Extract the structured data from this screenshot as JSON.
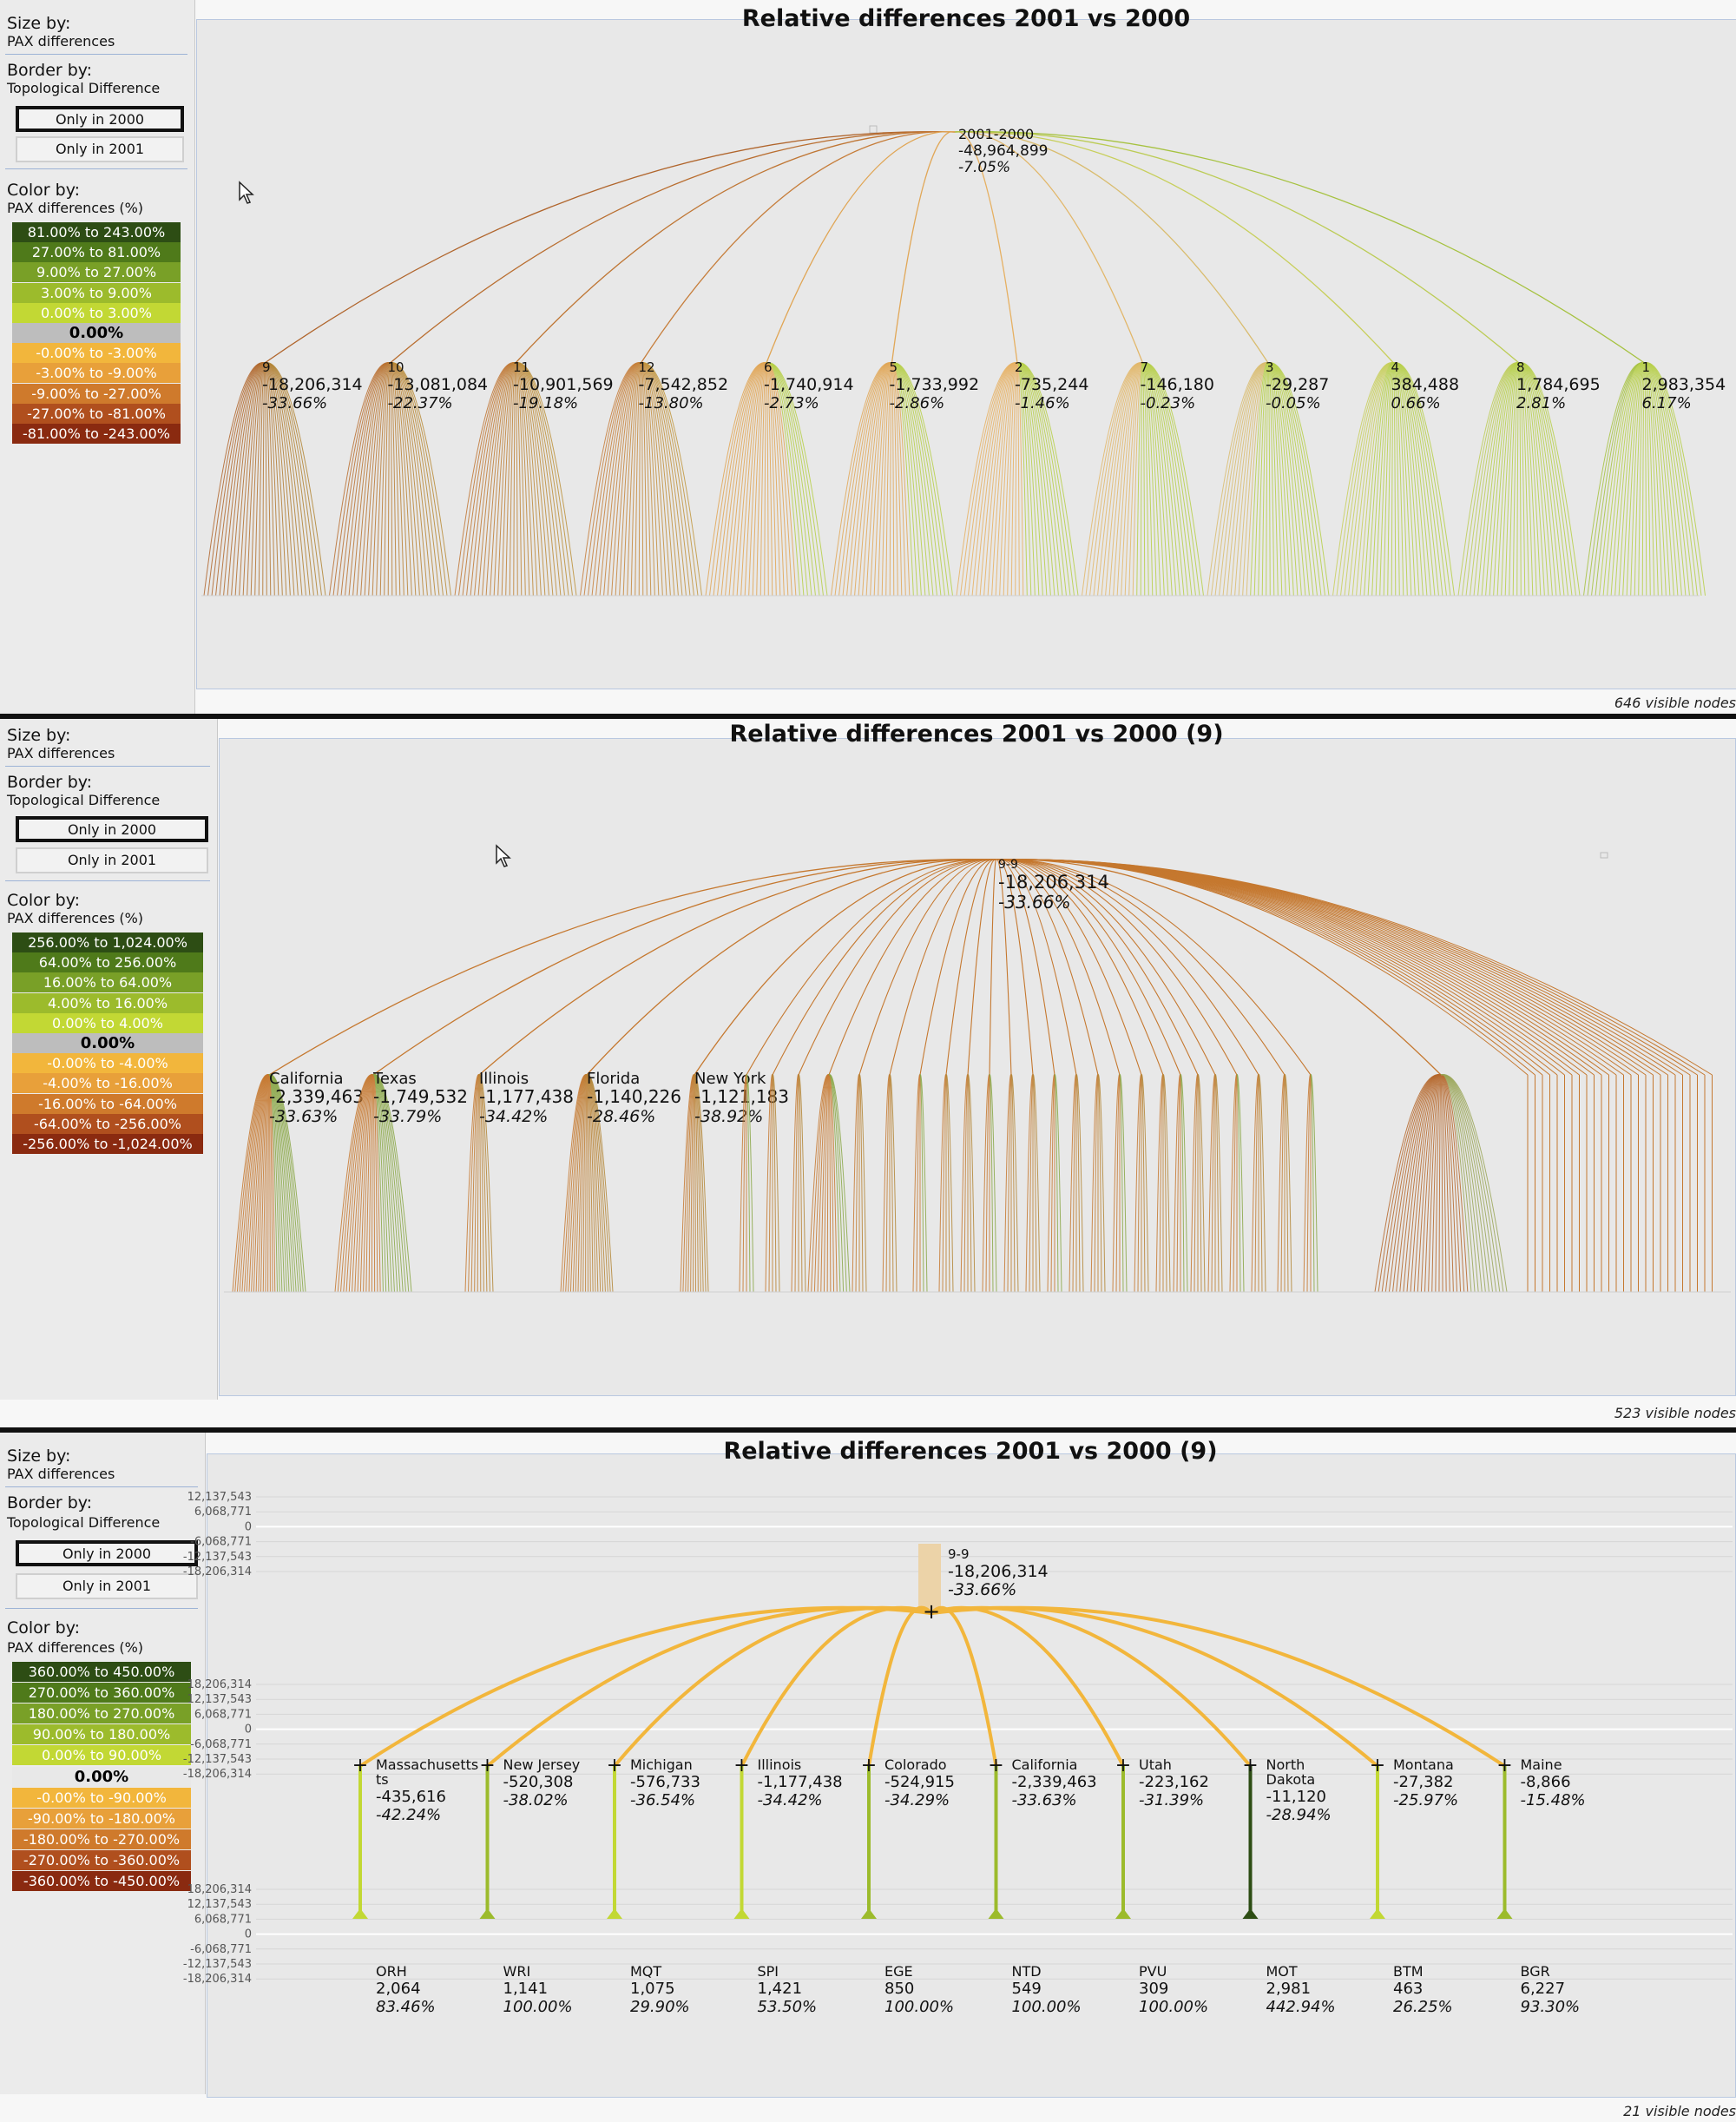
{
  "panels": [
    {
      "size_by": "Size by:",
      "size_by_value": "PAX differences",
      "border_by": "Border by:",
      "border_by_value": "Topological Difference",
      "btn_only_2000": "Only in 2000",
      "btn_only_2001": "Only in 2001",
      "color_by": "Color by:",
      "color_by_value": "PAX differences (%)",
      "legend": [
        {
          "label": "81.00% to 243.00%",
          "bg": "#2d4d14",
          "fg": "#fff"
        },
        {
          "label": "27.00% to 81.00%",
          "bg": "#4f7a1a",
          "fg": "#fff"
        },
        {
          "label": "9.00% to 27.00%",
          "bg": "#79a027",
          "fg": "#fff"
        },
        {
          "label": "3.00% to 9.00%",
          "bg": "#9cbb2c",
          "fg": "#fff"
        },
        {
          "label": "0.00% to 3.00%",
          "bg": "#c2d834",
          "fg": "#fff"
        },
        {
          "label": "0.00%",
          "bg": "#bdbdbd",
          "fg": "#000"
        },
        {
          "label": "-0.00% to -3.00%",
          "bg": "#f2b63c",
          "fg": "#fff"
        },
        {
          "label": "-3.00% to -9.00%",
          "bg": "#e8a03a",
          "fg": "#fff"
        },
        {
          "label": "-9.00% to -27.00%",
          "bg": "#cf7a2c",
          "fg": "#fff"
        },
        {
          "label": "-27.00% to -81.00%",
          "bg": "#b04f1e",
          "fg": "#fff"
        },
        {
          "label": "-81.00% to -243.00%",
          "bg": "#8a2a10",
          "fg": "#fff"
        }
      ],
      "title": "Relative differences 2001 vs 2000",
      "footer": "646 visible nodes",
      "root": {
        "id": "2001-2000",
        "value": "-48,964,899",
        "pct": "-7.05%"
      },
      "nodes": [
        {
          "id": "9",
          "value": "-18,206,314",
          "pct": "-33.66%",
          "color": "#b0652c"
        },
        {
          "id": "10",
          "value": "-13,081,084",
          "pct": "-22.37%",
          "color": "#b96e30"
        },
        {
          "id": "11",
          "value": "-10,901,569",
          "pct": "-19.18%",
          "color": "#bf7634"
        },
        {
          "id": "12",
          "value": "-7,542,852",
          "pct": "-13.80%",
          "color": "#c67d3a"
        },
        {
          "id": "6",
          "value": "-1,740,914",
          "pct": "-2.73%",
          "color": "#e0a554"
        },
        {
          "id": "5",
          "value": "-1,733,992",
          "pct": "-2.86%",
          "color": "#e1a757"
        },
        {
          "id": "2",
          "value": "-735,244",
          "pct": "-1.46%",
          "color": "#e6b062"
        },
        {
          "id": "7",
          "value": "-146,180",
          "pct": "-0.23%",
          "color": "#e2b76a"
        },
        {
          "id": "3",
          "value": "-29,287",
          "pct": "-0.05%",
          "color": "#d9bc6e"
        },
        {
          "id": "4",
          "value": "384,488",
          "pct": "0.66%",
          "color": "#c8cf5c"
        },
        {
          "id": "8",
          "value": "1,784,695",
          "pct": "2.81%",
          "color": "#bccc56"
        },
        {
          "id": "1",
          "value": "2,983,354",
          "pct": "6.17%",
          "color": "#a6c240"
        }
      ]
    },
    {
      "size_by": "Size by:",
      "size_by_value": "PAX differences",
      "border_by": "Border by:",
      "border_by_value": "Topological Difference",
      "btn_only_2000": "Only in 2000",
      "btn_only_2001": "Only in 2001",
      "color_by": "Color by:",
      "color_by_value": "PAX differences (%)",
      "legend": [
        {
          "label": "256.00% to 1,024.00%",
          "bg": "#2d4d14",
          "fg": "#fff"
        },
        {
          "label": "64.00% to 256.00%",
          "bg": "#4f7a1a",
          "fg": "#fff"
        },
        {
          "label": "16.00% to 64.00%",
          "bg": "#79a027",
          "fg": "#fff"
        },
        {
          "label": "4.00% to 16.00%",
          "bg": "#9cbb2c",
          "fg": "#fff"
        },
        {
          "label": "0.00% to 4.00%",
          "bg": "#c2d834",
          "fg": "#fff"
        },
        {
          "label": "0.00%",
          "bg": "#bdbdbd",
          "fg": "#000"
        },
        {
          "label": "-0.00% to -4.00%",
          "bg": "#f2b63c",
          "fg": "#fff"
        },
        {
          "label": "-4.00% to -16.00%",
          "bg": "#e8a03a",
          "fg": "#fff"
        },
        {
          "label": "-16.00% to -64.00%",
          "bg": "#cf7a2c",
          "fg": "#fff"
        },
        {
          "label": "-64.00% to -256.00%",
          "bg": "#b04f1e",
          "fg": "#fff"
        },
        {
          "label": "-256.00% to -1,024.00%",
          "bg": "#8a2a10",
          "fg": "#fff"
        }
      ],
      "title": "Relative differences 2001 vs 2000 (9)",
      "footer": "523 visible nodes",
      "root": {
        "id": "9-9",
        "value": "-18,206,314",
        "pct": "-33.66%"
      },
      "nodes": [
        {
          "id": "California",
          "value": "-2,339,463",
          "pct": "-33.63%"
        },
        {
          "id": "Texas",
          "value": "-1,749,532",
          "pct": "-33.79%"
        },
        {
          "id": "Illinois",
          "value": "-1,177,438",
          "pct": "-34.42%"
        },
        {
          "id": "Florida",
          "value": "-1,140,226",
          "pct": "-28.46%"
        },
        {
          "id": "New York",
          "value": "-1,121,183",
          "pct": "-38.92%"
        }
      ]
    },
    {
      "size_by": "Size by:",
      "size_by_value": "PAX differences",
      "border_by": "Border by:",
      "border_by_value": "Topological Difference",
      "btn_only_2000": "Only in 2000",
      "btn_only_2001": "Only in 2001",
      "color_by": "Color by:",
      "color_by_value": "PAX differences (%)",
      "legend": [
        {
          "label": "360.00% to 450.00%",
          "bg": "#2d4d14",
          "fg": "#fff"
        },
        {
          "label": "270.00% to 360.00%",
          "bg": "#4f7a1a",
          "fg": "#fff"
        },
        {
          "label": "180.00% to 270.00%",
          "bg": "#79a027",
          "fg": "#fff"
        },
        {
          "label": "90.00% to 180.00%",
          "bg": "#9cbb2c",
          "fg": "#fff"
        },
        {
          "label": "0.00% to 90.00%",
          "bg": "#c2d834",
          "fg": "#fff"
        },
        {
          "label": "0.00%",
          "bg": "#e8e8e8",
          "fg": "#000"
        },
        {
          "label": "-0.00% to -90.00%",
          "bg": "#f2b63c",
          "fg": "#fff"
        },
        {
          "label": "-90.00% to -180.00%",
          "bg": "#e8a03a",
          "fg": "#fff"
        },
        {
          "label": "-180.00% to -270.00%",
          "bg": "#cf7a2c",
          "fg": "#fff"
        },
        {
          "label": "-270.00% to -360.00%",
          "bg": "#b04f1e",
          "fg": "#fff"
        },
        {
          "label": "-360.00% to -450.00%",
          "bg": "#8a2a10",
          "fg": "#fff"
        }
      ],
      "title": "Relative differences 2001 vs 2000 (9)",
      "footer": "21 visible nodes",
      "axis_top": [
        "12,137,543",
        "6,068,771",
        "0",
        "-6,068,771",
        "-12,137,543",
        "-18,206,314"
      ],
      "axis_mid": [
        "18,206,314",
        "12,137,543",
        "6,068,771",
        "0",
        "-6,068,771",
        "-12,137,543",
        "-18,206,314"
      ],
      "axis_bot": [
        "18,206,314",
        "12,137,543",
        "6,068,771",
        "0",
        "-6,068,771",
        "-12,137,543",
        "-18,206,314"
      ],
      "root": {
        "id": "9-9",
        "value": "-18,206,314",
        "pct": "-33.66%"
      },
      "states": [
        {
          "name": "Massachusetts",
          "name2": "ts",
          "value": "-435,616",
          "pct": "-42.24%",
          "airport": "ORH",
          "a_value": "2,064",
          "a_pct": "83.46%",
          "stem": "#c2d834"
        },
        {
          "name": "New Jersey",
          "value": "-520,308",
          "pct": "-38.02%",
          "airport": "WRI",
          "a_value": "1,141",
          "a_pct": "100.00%",
          "stem": "#9cbb2c"
        },
        {
          "name": "Michigan",
          "value": "-576,733",
          "pct": "-36.54%",
          "airport": "MQT",
          "a_value": "1,075",
          "a_pct": "29.90%",
          "stem": "#c2d834"
        },
        {
          "name": "Illinois",
          "value": "-1,177,438",
          "pct": "-34.42%",
          "airport": "SPI",
          "a_value": "1,421",
          "a_pct": "53.50%",
          "stem": "#c2d834"
        },
        {
          "name": "Colorado",
          "value": "-524,915",
          "pct": "-34.29%",
          "airport": "EGE",
          "a_value": "850",
          "a_pct": "100.00%",
          "stem": "#9cbb2c"
        },
        {
          "name": "California",
          "value": "-2,339,463",
          "pct": "-33.63%",
          "airport": "NTD",
          "a_value": "549",
          "a_pct": "100.00%",
          "stem": "#9cbb2c"
        },
        {
          "name": "Utah",
          "value": "-223,162",
          "pct": "-31.39%",
          "airport": "PVU",
          "a_value": "309",
          "a_pct": "100.00%",
          "stem": "#9cbb2c"
        },
        {
          "name": "North",
          "name2": "Dakota",
          "value": "-11,120",
          "pct": "-28.94%",
          "airport": "MOT",
          "a_value": "2,981",
          "a_pct": "442.94%",
          "stem": "#2d4d14"
        },
        {
          "name": "Montana",
          "value": "-27,382",
          "pct": "-25.97%",
          "airport": "BTM",
          "a_value": "463",
          "a_pct": "26.25%",
          "stem": "#c2d834"
        },
        {
          "name": "Maine",
          "value": "-8,866",
          "pct": "-15.48%",
          "airport": "BGR",
          "a_value": "6,227",
          "a_pct": "93.30%",
          "stem": "#9cbb2c"
        }
      ]
    }
  ]
}
